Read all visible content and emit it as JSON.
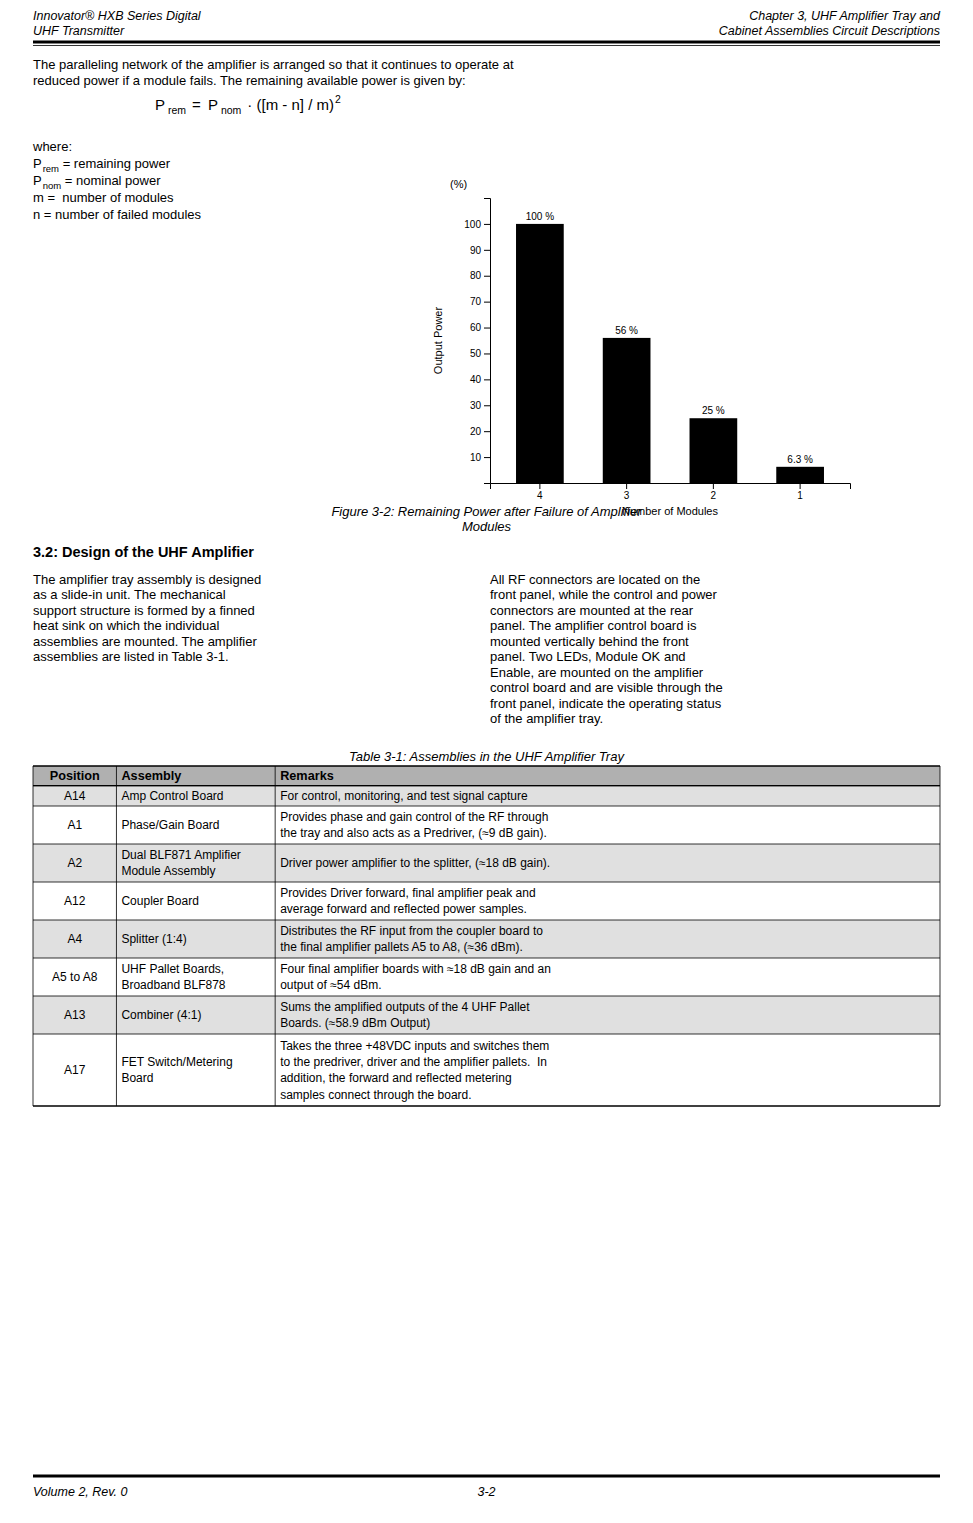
{
  "page": {
    "header_left": [
      "Innovator® HXB Series Digital",
      "UHF Transmitter"
    ],
    "header_right": [
      "Chapter 3, UHF Amplifier Tray and",
      "Cabinet Assemblies Circuit Descriptions"
    ],
    "body": [
      "The paralleling network of the amplifier is arranged so that it continues to operate at",
      "reduced power if a module fails. The remaining available power is given by:"
    ],
    "formula": {
      "lhs": [
        "P",
        "rem"
      ],
      "eq": "=",
      "rhs": [
        "P",
        "nom"
      ],
      "factor": "· ([m - n] / m)",
      "exponent": "2"
    },
    "where": "where:",
    "where_items": [
      [
        "P",
        "rem",
        " = remaining power"
      ],
      [
        "P",
        "nom",
        " = nominal power"
      ],
      [
        "m =  number of modules"
      ],
      [
        "n = number of failed modules"
      ]
    ],
    "caption": [
      "Figure 3-2: Remaining Power after Failure of Amplifier",
      "Modules"
    ],
    "section_title": "3.2: Design of the UHF Amplifier",
    "left_col": [
      "The amplifier tray assembly is designed",
      "as a slide-in unit. The mechanical",
      "support structure is formed by a finned",
      "heat sink on which the individual",
      "assemblies are mounted. The amplifier",
      "assemblies are listed in Table 3-1."
    ],
    "right_col": [
      "All RF connectors are located on the",
      "front panel, while the control and power",
      "connectors are mounted at the rear",
      "panel.  The amplifier control board is",
      "mounted vertically behind the front",
      "panel.  Two LEDs, Module OK and",
      "Enable, are mounted on the amplifier",
      "control board and are visible through the",
      "front panel, indicate the operating status",
      "of the amplifier tray."
    ],
    "table_title": "Table 3-1: Assemblies in the UHF Amplifier Tray",
    "table_headers": [
      "Position",
      "Assembly",
      "Remarks"
    ],
    "table_rows": [
      [
        "A14",
        "Amp Control Board",
        "For control, monitoring, and test signal capture"
      ],
      [
        "A1",
        "Phase/Gain Board",
        "Provides phase and gain control of the RF through\nthe tray and also acts as a Predriver, (≈9 dB gain)."
      ],
      [
        "A2",
        "Dual BLF871 Amplifier\nModule Assembly",
        "Driver power amplifier to the splitter, (≈18 dB gain)."
      ],
      [
        "A12",
        "Coupler Board",
        "Provides Driver forward, final amplifier peak and\naverage forward and reflected power samples."
      ],
      [
        "A4",
        "Splitter (1:4)",
        "Distributes the RF input from the coupler board to\nthe final amplifier pallets A5 to A8, (≈36 dBm)."
      ],
      [
        "A5 to A8",
        "UHF Pallet Boards,\nBroadband BLF878",
        "Four final amplifier boards with ≈18 dB gain and an\noutput of ≈54 dBm."
      ],
      [
        "A13",
        "Combiner (4:1)",
        "Sums the amplified outputs of the 4 UHF Pallet\nBoards. (≈58.9 dBm Output)"
      ],
      [
        "A17",
        "FET Switch/Metering\nBoard",
        "Takes the three +48VDC inputs and switches them\nto the predriver, driver and the amplifier pallets.  In\naddition, the forward and reflected metering\nsamples connect through the board."
      ]
    ],
    "footer_left": "Volume 2, Rev. 0",
    "footer_center": "3-2"
  },
  "chart_data": {
    "type": "bar",
    "categories": [
      "4",
      "3",
      "2",
      "1"
    ],
    "values": [
      100,
      56,
      25,
      6.25
    ],
    "value_labels": [
      "100 %",
      "56 %",
      "25 %",
      "6.3 %"
    ],
    "data_labels": true,
    "color": "#000000",
    "xlabel": "Number of Modules",
    "ylabel": "Output Power",
    "annotations": [
      "(%)"
    ],
    "ylim": [
      0,
      110
    ],
    "yticks": [
      10,
      20,
      30,
      40,
      50,
      60,
      70,
      80,
      90,
      100
    ]
  }
}
